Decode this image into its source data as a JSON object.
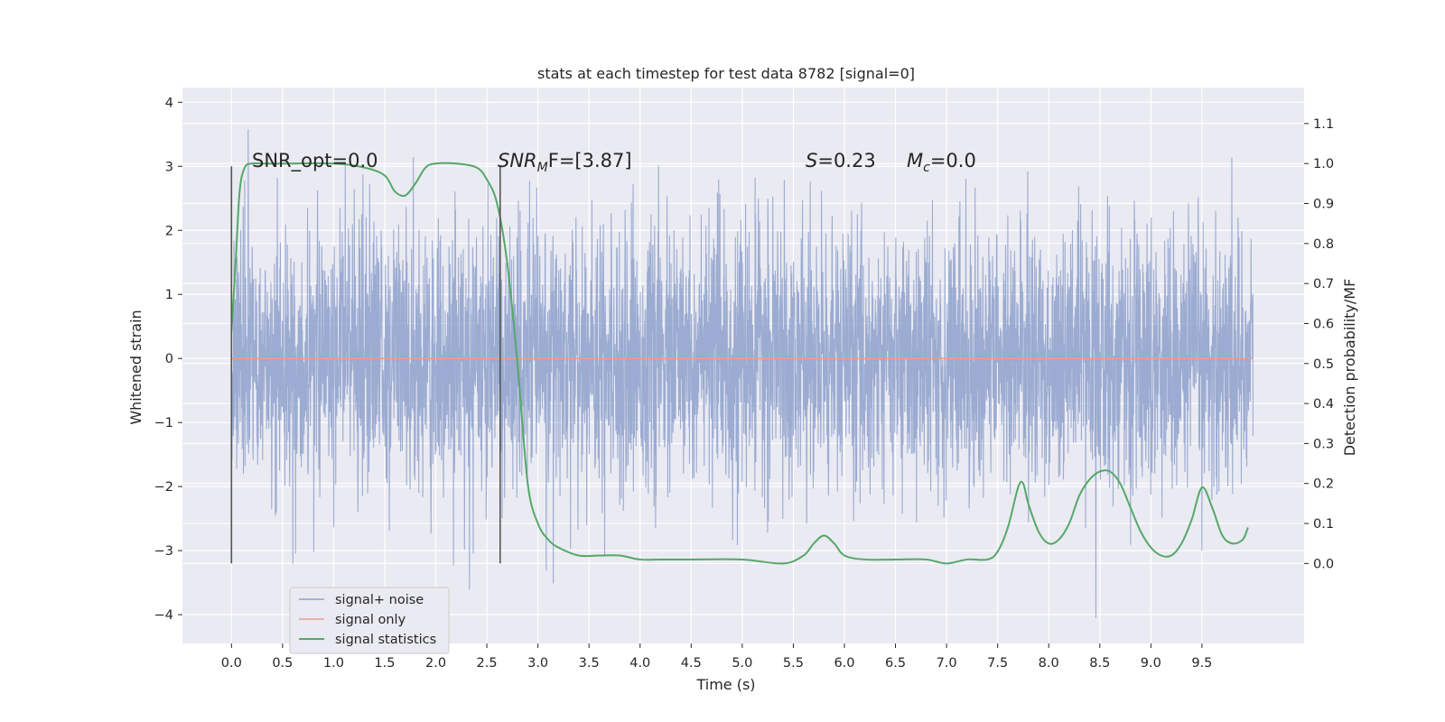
{
  "chart_data": {
    "type": "line",
    "title": "stats at each timestep for test data 8782 [signal=0]",
    "xlabel": "Time (s)",
    "ylabel": "Whitened strain",
    "y2label": "Detection probability/MF",
    "xlim": [
      -0.48,
      10.5
    ],
    "ylim": [
      -4.45,
      4.23
    ],
    "y2lim": [
      -0.2,
      1.19
    ],
    "x_ticks": [
      "0.0",
      "0.5",
      "1.0",
      "1.5",
      "2.0",
      "2.5",
      "3.0",
      "3.5",
      "4.0",
      "4.5",
      "5.0",
      "5.5",
      "6.0",
      "6.5",
      "7.0",
      "7.5",
      "8.0",
      "8.5",
      "9.0",
      "9.5"
    ],
    "y_ticks": [
      "4",
      "3",
      "2",
      "1",
      "0",
      "−1",
      "−2",
      "−3",
      "−4"
    ],
    "y2_ticks": [
      "1.1",
      "1.0",
      "0.9",
      "0.8",
      "0.7",
      "0.6",
      "0.5",
      "0.4",
      "0.3",
      "0.2",
      "0.1",
      "0.0"
    ],
    "grid": true,
    "legend_position": "lower-left",
    "annotations": [
      {
        "name": "snr-opt",
        "text": "SNR_opt=0.0"
      },
      {
        "name": "snr-mf",
        "text": "SNR",
        "sub": "M",
        "rest": "F=[3.87]"
      },
      {
        "name": "s-value",
        "text": "S",
        "rest": "=0.23"
      },
      {
        "name": "mc-value",
        "text": "M",
        "sub": "c",
        "rest": "=0.0"
      }
    ],
    "vertical_markers": [
      {
        "x": 0.0,
        "y_range": [
          -3.2,
          3.0
        ]
      },
      {
        "x": 2.63,
        "y_range": [
          -3.2,
          3.0
        ]
      }
    ],
    "series": [
      {
        "name": "signal+ noise",
        "color": "#8da0cb",
        "axis": "left",
        "x_range": [
          0,
          10
        ],
        "noise_sigma": 1.0,
        "extremes": [
          -4.05,
          3.85
        ]
      },
      {
        "name": "signal only",
        "color": "#e6a089",
        "axis": "left",
        "x": [
          0,
          10
        ],
        "y": [
          0,
          0
        ]
      },
      {
        "name": "signal statistics",
        "color": "#55a868",
        "axis": "right",
        "x": [
          0.0,
          0.04,
          0.08,
          0.13,
          0.2,
          0.3,
          0.5,
          1.0,
          1.3,
          1.5,
          1.6,
          1.7,
          1.8,
          1.9,
          2.0,
          2.2,
          2.4,
          2.5,
          2.6,
          2.7,
          2.8,
          2.9,
          3.0,
          3.1,
          3.2,
          3.4,
          3.6,
          3.8,
          4.0,
          4.2,
          4.5,
          5.0,
          5.4,
          5.6,
          5.7,
          5.8,
          5.9,
          6.0,
          6.2,
          6.5,
          6.8,
          7.0,
          7.2,
          7.4,
          7.5,
          7.6,
          7.7,
          7.75,
          7.8,
          7.9,
          8.0,
          8.1,
          8.2,
          8.3,
          8.4,
          8.5,
          8.6,
          8.7,
          8.8,
          8.9,
          9.0,
          9.1,
          9.2,
          9.3,
          9.4,
          9.5,
          9.6,
          9.7,
          9.8,
          9.9,
          9.95
        ],
        "y": [
          0.58,
          0.75,
          0.93,
          0.99,
          1.0,
          1.0,
          1.0,
          1.0,
          0.99,
          0.97,
          0.93,
          0.92,
          0.95,
          0.99,
          1.0,
          1.0,
          0.99,
          0.96,
          0.9,
          0.75,
          0.5,
          0.2,
          0.1,
          0.06,
          0.04,
          0.02,
          0.02,
          0.02,
          0.01,
          0.01,
          0.01,
          0.01,
          0.0,
          0.02,
          0.05,
          0.07,
          0.05,
          0.02,
          0.01,
          0.01,
          0.01,
          0.0,
          0.01,
          0.01,
          0.03,
          0.09,
          0.19,
          0.2,
          0.15,
          0.08,
          0.05,
          0.06,
          0.1,
          0.17,
          0.21,
          0.23,
          0.23,
          0.2,
          0.14,
          0.08,
          0.04,
          0.02,
          0.02,
          0.05,
          0.11,
          0.19,
          0.14,
          0.07,
          0.05,
          0.06,
          0.09
        ]
      }
    ]
  }
}
